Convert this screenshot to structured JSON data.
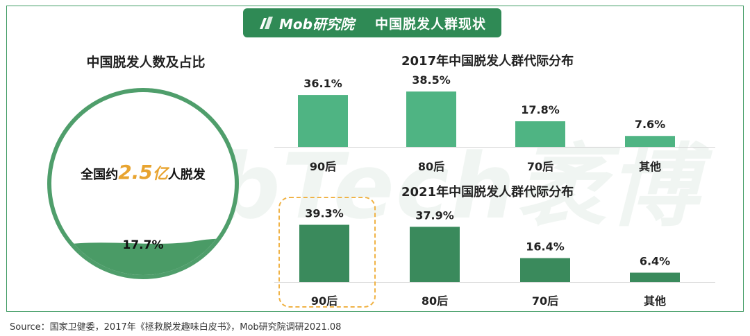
{
  "banner": {
    "brand": "Mob研究院",
    "title": "中国脱发人群现状"
  },
  "watermark": "MobTech袤博",
  "left_panel": {
    "title": "中国脱发人数及占比",
    "text_prefix": "全国约",
    "number": "2.5",
    "unit": "亿",
    "text_suffix": "人脱发",
    "percent_label": "17.7%",
    "percent_value": 17.7
  },
  "chart_data": [
    {
      "type": "bar",
      "title": "2017年中国脱发人群代际分布",
      "categories": [
        "90后",
        "80后",
        "70后",
        "其他"
      ],
      "values": [
        36.1,
        38.5,
        17.8,
        7.6
      ],
      "value_labels": [
        "36.1%",
        "38.5%",
        "17.8%",
        "7.6%"
      ],
      "ylim": [
        0,
        40
      ],
      "color": "#4fb483"
    },
    {
      "type": "bar",
      "title": "2021年中国脱发人群代际分布",
      "categories": [
        "90后",
        "80后",
        "70后",
        "其他"
      ],
      "values": [
        39.3,
        37.9,
        16.4,
        6.4
      ],
      "value_labels": [
        "39.3%",
        "37.9%",
        "16.4%",
        "6.4%"
      ],
      "ylim": [
        0,
        40
      ],
      "color": "#3a8a5c",
      "highlight_category": "90后"
    }
  ],
  "source": "Source：国家卫健委，2017年《拯救脱发趣味白皮书》，Mob研究院调研2021.08"
}
